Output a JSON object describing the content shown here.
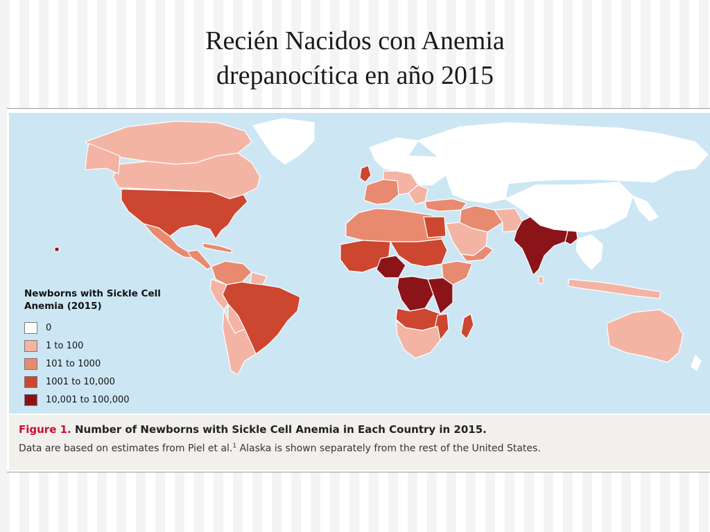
{
  "slide": {
    "title_line1": "Recién Nacidos con Anemia",
    "title_line2": "drepanocítica en año 2015"
  },
  "colors": {
    "ocean": "#cce6f4",
    "border": "#ffffff",
    "class_0": "#ffffff",
    "class_1_to_100": "#f4b4a4",
    "class_101_to_1000": "#e88a70",
    "class_1001_to_10000": "#cc4630",
    "class_10001_to_100000": "#8b1418"
  },
  "legend": {
    "title": "Newborns with Sickle Cell Anemia (2015)",
    "items": [
      {
        "label": "0",
        "color": "#ffffff"
      },
      {
        "label": "1 to 100",
        "color": "#f4b4a4"
      },
      {
        "label": "101 to 1000",
        "color": "#e88a70"
      },
      {
        "label": "1001 to 10,000",
        "color": "#cc4630"
      },
      {
        "label": "10,001 to 100,000",
        "color": "#8b1418"
      }
    ]
  },
  "caption": {
    "figure_label": "Figure 1.",
    "title": "Number of Newborns with Sickle Cell Anemia in Each Country in 2015.",
    "text_before_ref": "Data are based on estimates from Piel et al.",
    "ref": "1",
    "text_after_ref": " Alaska is shown separately from the rest of the United States."
  }
}
